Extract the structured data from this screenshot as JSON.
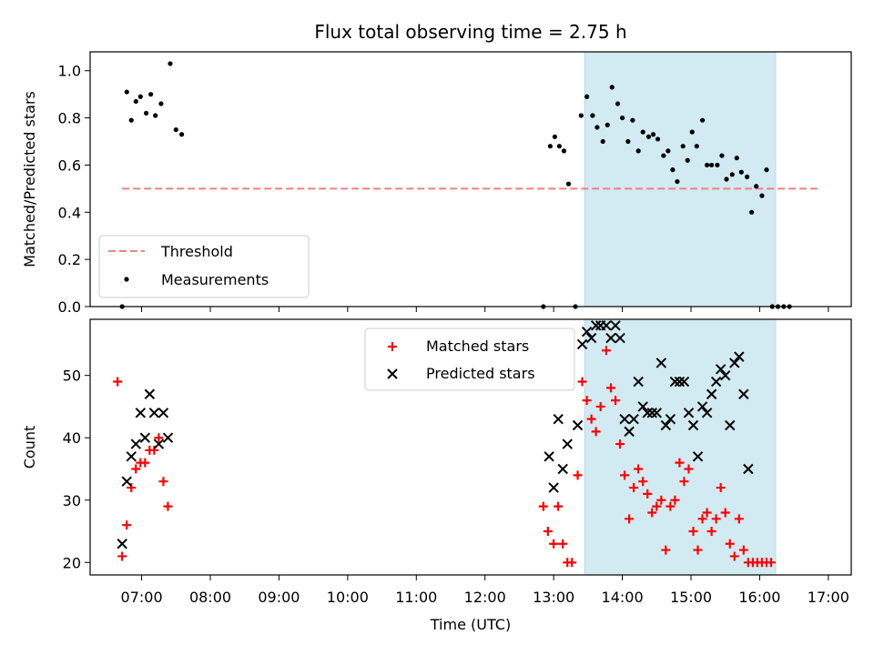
{
  "chart_data": [
    {
      "type": "scatter",
      "title": "Flux total observing time = 2.75 h",
      "xlabel": "",
      "ylabel": "Matched/Predicted stars",
      "xlim": [
        "06:15",
        "17:20"
      ],
      "ylim": [
        0.0,
        1.08
      ],
      "yticks": [
        "0.0",
        "0.2",
        "0.4",
        "0.6",
        "0.8",
        "1.0"
      ],
      "grid": false,
      "legend": "lower-left",
      "highlight": {
        "from": "13:27",
        "to": "16:14",
        "color": "#add8e6"
      },
      "threshold": {
        "name": "Threshold",
        "value": 0.5,
        "from": "06:43",
        "to": "16:52",
        "color": "#f08080"
      },
      "series": [
        {
          "name": "Measurements",
          "color": "#000000",
          "points": [
            [
              "06:43",
              0.0
            ],
            [
              "06:47",
              0.91
            ],
            [
              "06:51",
              0.79
            ],
            [
              "06:55",
              0.87
            ],
            [
              "06:59",
              0.89
            ],
            [
              "07:04",
              0.82
            ],
            [
              "07:08",
              0.9
            ],
            [
              "07:12",
              0.81
            ],
            [
              "07:17",
              0.86
            ],
            [
              "07:25",
              1.03
            ],
            [
              "07:30",
              0.75
            ],
            [
              "07:35",
              0.73
            ],
            [
              "12:51",
              0.0
            ],
            [
              "12:57",
              0.68
            ],
            [
              "13:01",
              0.72
            ],
            [
              "13:05",
              0.68
            ],
            [
              "13:09",
              0.66
            ],
            [
              "13:13",
              0.52
            ],
            [
              "13:19",
              0.0
            ],
            [
              "13:24",
              0.81
            ],
            [
              "13:29",
              0.89
            ],
            [
              "13:34",
              0.81
            ],
            [
              "13:38",
              0.76
            ],
            [
              "13:43",
              0.7
            ],
            [
              "13:47",
              0.77
            ],
            [
              "13:51",
              0.93
            ],
            [
              "13:56",
              0.86
            ],
            [
              "14:00",
              0.8
            ],
            [
              "14:05",
              0.7
            ],
            [
              "14:09",
              0.79
            ],
            [
              "14:14",
              0.66
            ],
            [
              "14:18",
              0.74
            ],
            [
              "14:23",
              0.72
            ],
            [
              "14:27",
              0.73
            ],
            [
              "14:31",
              0.71
            ],
            [
              "14:36",
              0.64
            ],
            [
              "14:40",
              0.66
            ],
            [
              "14:44",
              0.58
            ],
            [
              "14:48",
              0.53
            ],
            [
              "14:53",
              0.68
            ],
            [
              "14:57",
              0.62
            ],
            [
              "15:01",
              0.74
            ],
            [
              "15:05",
              0.68
            ],
            [
              "15:10",
              0.79
            ],
            [
              "15:14",
              0.6
            ],
            [
              "15:18",
              0.6
            ],
            [
              "15:23",
              0.6
            ],
            [
              "15:27",
              0.64
            ],
            [
              "15:31",
              0.54
            ],
            [
              "15:36",
              0.56
            ],
            [
              "15:40",
              0.63
            ],
            [
              "15:44",
              0.57
            ],
            [
              "15:49",
              0.55
            ],
            [
              "15:53",
              0.4
            ],
            [
              "15:57",
              0.51
            ],
            [
              "16:02",
              0.47
            ],
            [
              "16:06",
              0.58
            ],
            [
              "16:11",
              0.0
            ],
            [
              "16:16",
              0.0
            ],
            [
              "16:21",
              0.0
            ],
            [
              "16:26",
              0.0
            ]
          ]
        }
      ]
    },
    {
      "type": "scatter",
      "title": "",
      "xlabel": "Time (UTC)",
      "ylabel": "Count",
      "xlim": [
        "06:15",
        "17:20"
      ],
      "ylim": [
        18,
        59
      ],
      "xticks": [
        "07:00",
        "08:00",
        "09:00",
        "10:00",
        "11:00",
        "12:00",
        "13:00",
        "14:00",
        "15:00",
        "16:00",
        "17:00"
      ],
      "yticks": [
        "20",
        "30",
        "40",
        "50"
      ],
      "grid": false,
      "legend": "upper-center",
      "highlight": {
        "from": "13:27",
        "to": "16:14",
        "color": "#add8e6"
      },
      "series": [
        {
          "name": "Matched stars",
          "marker": "plus",
          "color": "#ff0000",
          "points": [
            [
              "06:39",
              49
            ],
            [
              "06:43",
              21
            ],
            [
              "06:47",
              26
            ],
            [
              "06:51",
              32
            ],
            [
              "06:55",
              35
            ],
            [
              "06:59",
              36
            ],
            [
              "07:03",
              36
            ],
            [
              "07:07",
              38
            ],
            [
              "07:11",
              38
            ],
            [
              "07:15",
              40
            ],
            [
              "07:19",
              33
            ],
            [
              "07:23",
              29
            ],
            [
              "12:51",
              29
            ],
            [
              "12:55",
              25
            ],
            [
              "13:00",
              23
            ],
            [
              "13:04",
              29
            ],
            [
              "13:08",
              23
            ],
            [
              "13:12",
              20
            ],
            [
              "13:16",
              20
            ],
            [
              "13:21",
              34
            ],
            [
              "13:25",
              49
            ],
            [
              "13:29",
              46
            ],
            [
              "13:33",
              43
            ],
            [
              "13:37",
              41
            ],
            [
              "13:41",
              45
            ],
            [
              "13:46",
              54
            ],
            [
              "13:50",
              48
            ],
            [
              "13:54",
              46
            ],
            [
              "13:58",
              39
            ],
            [
              "14:02",
              34
            ],
            [
              "14:06",
              27
            ],
            [
              "14:10",
              32
            ],
            [
              "14:14",
              35
            ],
            [
              "14:18",
              33
            ],
            [
              "14:22",
              31
            ],
            [
              "14:26",
              28
            ],
            [
              "14:30",
              29
            ],
            [
              "14:34",
              30
            ],
            [
              "14:38",
              22
            ],
            [
              "14:42",
              29
            ],
            [
              "14:46",
              30
            ],
            [
              "14:50",
              36
            ],
            [
              "14:54",
              33
            ],
            [
              "14:58",
              35
            ],
            [
              "15:02",
              25
            ],
            [
              "15:06",
              22
            ],
            [
              "15:10",
              27
            ],
            [
              "15:14",
              28
            ],
            [
              "15:18",
              25
            ],
            [
              "15:22",
              27
            ],
            [
              "15:26",
              32
            ],
            [
              "15:30",
              28
            ],
            [
              "15:34",
              23
            ],
            [
              "15:38",
              21
            ],
            [
              "15:42",
              27
            ],
            [
              "15:46",
              22
            ],
            [
              "15:50",
              20
            ],
            [
              "15:54",
              20
            ],
            [
              "15:58",
              20
            ],
            [
              "16:02",
              20
            ],
            [
              "16:06",
              20
            ],
            [
              "16:10",
              20
            ]
          ]
        },
        {
          "name": "Predicted stars",
          "marker": "x",
          "color": "#000000",
          "points": [
            [
              "06:43",
              23
            ],
            [
              "06:47",
              33
            ],
            [
              "06:51",
              37
            ],
            [
              "06:55",
              39
            ],
            [
              "06:59",
              44
            ],
            [
              "07:03",
              40
            ],
            [
              "07:07",
              47
            ],
            [
              "07:11",
              44
            ],
            [
              "07:15",
              39
            ],
            [
              "07:19",
              44
            ],
            [
              "07:23",
              40
            ],
            [
              "12:56",
              37
            ],
            [
              "13:00",
              32
            ],
            [
              "13:04",
              43
            ],
            [
              "13:08",
              35
            ],
            [
              "13:12",
              39
            ],
            [
              "13:21",
              42
            ],
            [
              "13:25",
              55
            ],
            [
              "13:29",
              57
            ],
            [
              "13:33",
              56
            ],
            [
              "13:37",
              58
            ],
            [
              "13:41",
              58
            ],
            [
              "13:46",
              58
            ],
            [
              "13:50",
              56
            ],
            [
              "13:54",
              58
            ],
            [
              "13:58",
              56
            ],
            [
              "14:02",
              43
            ],
            [
              "14:06",
              41
            ],
            [
              "14:10",
              43
            ],
            [
              "14:14",
              49
            ],
            [
              "14:18",
              45
            ],
            [
              "14:22",
              44
            ],
            [
              "14:26",
              44
            ],
            [
              "14:30",
              44
            ],
            [
              "14:34",
              52
            ],
            [
              "14:38",
              42
            ],
            [
              "14:42",
              43
            ],
            [
              "14:46",
              49
            ],
            [
              "14:50",
              49
            ],
            [
              "14:54",
              49
            ],
            [
              "14:58",
              44
            ],
            [
              "15:02",
              42
            ],
            [
              "15:06",
              37
            ],
            [
              "15:10",
              45
            ],
            [
              "15:14",
              44
            ],
            [
              "15:18",
              47
            ],
            [
              "15:22",
              49
            ],
            [
              "15:26",
              51
            ],
            [
              "15:30",
              50
            ],
            [
              "15:34",
              42
            ],
            [
              "15:38",
              52
            ],
            [
              "15:42",
              53
            ],
            [
              "15:46",
              47
            ],
            [
              "15:50",
              35
            ]
          ]
        }
      ]
    }
  ]
}
